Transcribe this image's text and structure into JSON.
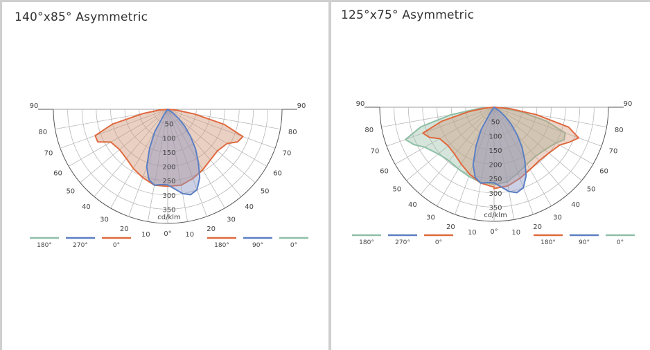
{
  "colors": {
    "green": "#8ebfa6",
    "blue": "#5b7fc4",
    "red": "#e0693e",
    "grid": "#b8b8b8"
  },
  "chart_data": [
    {
      "type": "polar",
      "title": "140°x85° Asymmetric",
      "unit_label": "cd/klm",
      "radial_ticks": [
        50,
        100,
        150,
        200,
        250,
        300,
        350
      ],
      "rmax": 400,
      "angle_labels": [
        "90",
        "80",
        "70",
        "60",
        "50",
        "40",
        "30",
        "20",
        "10",
        "0°"
      ],
      "legend_left": [
        {
          "label": "180°",
          "color": "#8ebfa6"
        },
        {
          "label": "270°",
          "color": "#5b7fc4"
        },
        {
          "label": "0°",
          "color": "#e0693e"
        }
      ],
      "legend_right": [
        {
          "label": "180°",
          "color": "#e0693e"
        },
        {
          "label": "90°",
          "color": "#5b7fc4"
        },
        {
          "label": "0°",
          "color": "#8ebfa6"
        }
      ],
      "series": [
        {
          "color": "#e0693e",
          "fill": "rgba(208,150,120,0.45)",
          "left": [
            [
              0,
              270
            ],
            [
              10,
              270
            ],
            [
              20,
              255
            ],
            [
              30,
              240
            ],
            [
              40,
              225
            ],
            [
              50,
              220
            ],
            [
              60,
              230
            ],
            [
              65,
              270
            ],
            [
              70,
              270
            ],
            [
              75,
              200
            ],
            [
              80,
              90
            ],
            [
              85,
              30
            ],
            [
              90,
              0
            ]
          ],
          "right": [
            [
              0,
              270
            ],
            [
              10,
              270
            ],
            [
              20,
              258
            ],
            [
              30,
              245
            ],
            [
              40,
              232
            ],
            [
              50,
              227
            ],
            [
              60,
              240
            ],
            [
              65,
              270
            ],
            [
              70,
              280
            ],
            [
              75,
              205
            ],
            [
              80,
              95
            ],
            [
              85,
              30
            ],
            [
              90,
              0
            ]
          ]
        },
        {
          "color": "#5b7fc4",
          "fill": "rgba(140,150,195,0.45)",
          "left": [
            [
              0,
              265
            ],
            [
              5,
              265
            ],
            [
              10,
              270
            ],
            [
              15,
              255
            ],
            [
              20,
              215
            ],
            [
              25,
              150
            ],
            [
              30,
              90
            ],
            [
              35,
              20
            ],
            [
              40,
              0
            ]
          ],
          "right": [
            [
              0,
              265
            ],
            [
              5,
              280
            ],
            [
              10,
              300
            ],
            [
              15,
              310
            ],
            [
              20,
              300
            ],
            [
              25,
              265
            ],
            [
              30,
              215
            ],
            [
              35,
              170
            ],
            [
              40,
              125
            ],
            [
              45,
              85
            ],
            [
              50,
              50
            ],
            [
              55,
              22
            ],
            [
              60,
              0
            ]
          ]
        }
      ]
    },
    {
      "type": "polar",
      "title": "125°x75° Asymmetric",
      "unit_label": "cd/klm",
      "radial_ticks": [
        50,
        100,
        150,
        200,
        250,
        300,
        350
      ],
      "rmax": 400,
      "angle_labels": [
        "90",
        "80",
        "70",
        "60",
        "50",
        "40",
        "30",
        "20",
        "10",
        "0°"
      ],
      "legend_left": [
        {
          "label": "180°",
          "color": "#8ebfa6"
        },
        {
          "label": "270°",
          "color": "#5b7fc4"
        },
        {
          "label": "0°",
          "color": "#e0693e"
        }
      ],
      "legend_right": [
        {
          "label": "180°",
          "color": "#e0693e"
        },
        {
          "label": "90°",
          "color": "#5b7fc4"
        },
        {
          "label": "0°",
          "color": "#8ebfa6"
        }
      ],
      "series": [
        {
          "color": "#8ebfa6",
          "fill": "rgba(150,190,165,0.40)",
          "left": [
            [
              0,
              270
            ],
            [
              10,
              268
            ],
            [
              20,
              258
            ],
            [
              30,
              250
            ],
            [
              40,
              245
            ],
            [
              50,
              255
            ],
            [
              60,
              280
            ],
            [
              65,
              310
            ],
            [
              70,
              330
            ],
            [
              75,
              265
            ],
            [
              80,
              155
            ],
            [
              85,
              55
            ],
            [
              90,
              0
            ]
          ],
          "right": [
            [
              0,
              272
            ],
            [
              10,
              265
            ],
            [
              20,
              245
            ],
            [
              30,
              230
            ],
            [
              40,
              225
            ],
            [
              50,
              232
            ],
            [
              60,
              250
            ],
            [
              65,
              270
            ],
            [
              70,
              265
            ],
            [
              75,
              190
            ],
            [
              80,
              100
            ],
            [
              85,
              35
            ],
            [
              90,
              0
            ]
          ]
        },
        {
          "color": "#e0693e",
          "fill": "rgba(208,150,120,0.40)",
          "left": [
            [
              0,
              280
            ],
            [
              10,
              270
            ],
            [
              20,
              250
            ],
            [
              30,
              230
            ],
            [
              40,
              215
            ],
            [
              50,
              210
            ],
            [
              60,
              220
            ],
            [
              65,
              250
            ],
            [
              70,
              265
            ],
            [
              75,
              190
            ],
            [
              80,
              90
            ],
            [
              85,
              30
            ],
            [
              90,
              0
            ]
          ],
          "right": [
            [
              0,
              285
            ],
            [
              10,
              280
            ],
            [
              20,
              265
            ],
            [
              30,
              252
            ],
            [
              40,
              245
            ],
            [
              50,
              250
            ],
            [
              60,
              265
            ],
            [
              65,
              290
            ],
            [
              70,
              315
            ],
            [
              75,
              270
            ],
            [
              80,
              150
            ],
            [
              85,
              55
            ],
            [
              90,
              0
            ]
          ]
        },
        {
          "color": "#5b7fc4",
          "fill": "rgba(140,150,195,0.45)",
          "left": [
            [
              0,
              265
            ],
            [
              5,
              265
            ],
            [
              10,
              270
            ],
            [
              15,
              255
            ],
            [
              20,
              215
            ],
            [
              25,
              150
            ],
            [
              30,
              90
            ],
            [
              35,
              20
            ],
            [
              40,
              0
            ]
          ],
          "right": [
            [
              0,
              265
            ],
            [
              5,
              280
            ],
            [
              10,
              300
            ],
            [
              15,
              310
            ],
            [
              20,
              300
            ],
            [
              25,
              265
            ],
            [
              30,
              215
            ],
            [
              35,
              170
            ],
            [
              40,
              125
            ],
            [
              45,
              85
            ],
            [
              50,
              50
            ],
            [
              55,
              22
            ],
            [
              60,
              0
            ]
          ]
        }
      ]
    }
  ]
}
